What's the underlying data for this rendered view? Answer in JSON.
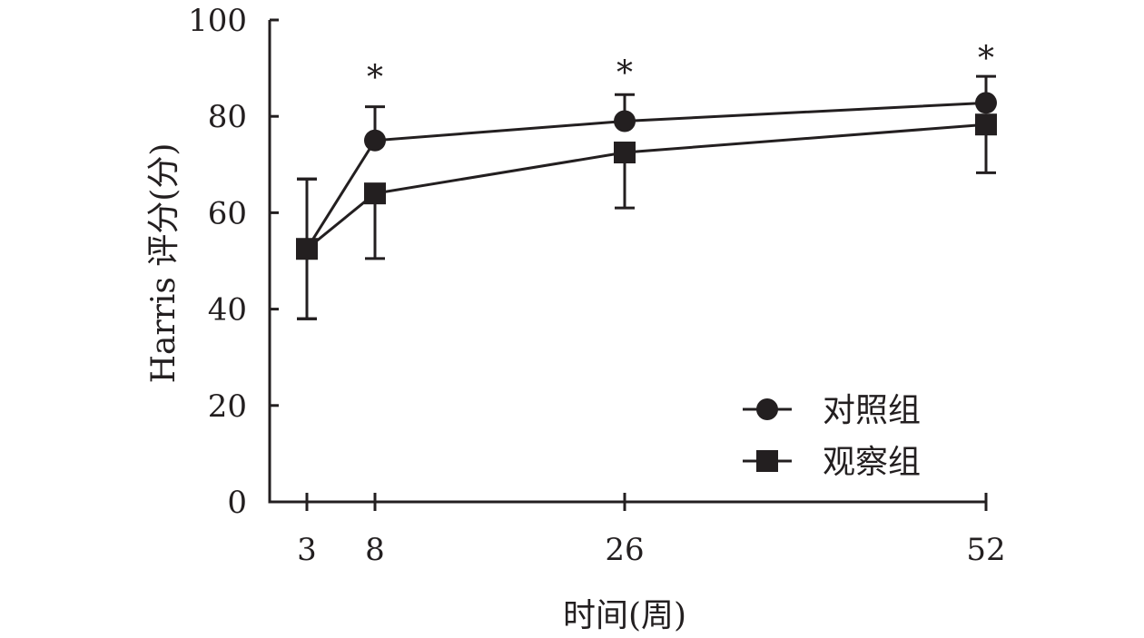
{
  "chart_data": {
    "type": "line",
    "xlabel": "时间(周)",
    "ylabel": "Harris 评分(分)",
    "x": [
      3,
      8,
      26,
      52
    ],
    "x_tick_labels": [
      "3",
      "8",
      "26",
      "52"
    ],
    "xlim": [
      0,
      52
    ],
    "ylim": [
      0,
      100
    ],
    "y_ticks": [
      0,
      20,
      40,
      60,
      80,
      100
    ],
    "y_tick_labels": [
      "0",
      "20",
      "40",
      "60",
      "80",
      "100"
    ],
    "grid": false,
    "legend_position": "bottom-right",
    "significance_marks": [
      {
        "x": 8,
        "label": "*",
        "y": 88
      },
      {
        "x": 26,
        "label": "*",
        "y": 89
      },
      {
        "x": 52,
        "label": "*",
        "y": 92
      }
    ],
    "series": [
      {
        "name": "对照组",
        "marker": "circle",
        "values": [
          52.5,
          75,
          79,
          82.8
        ],
        "error": [
          14.5,
          7,
          5.5,
          5.5
        ]
      },
      {
        "name": "观察组",
        "marker": "square",
        "values": [
          52.5,
          64,
          72.5,
          78.3
        ],
        "error": [
          14.5,
          13.5,
          11.5,
          10
        ]
      }
    ],
    "colors": {
      "ink": "#231f20"
    }
  }
}
